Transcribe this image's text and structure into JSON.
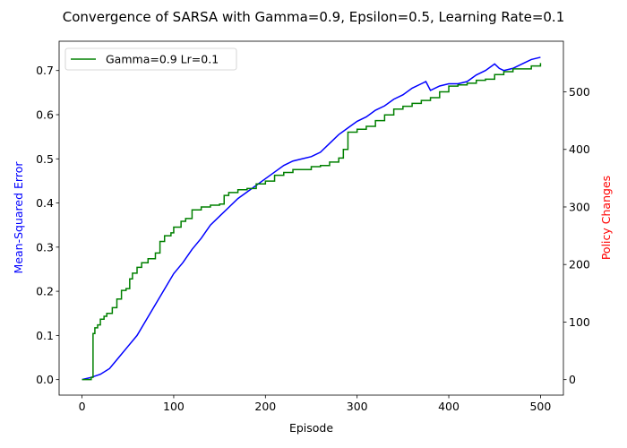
{
  "chart_data": {
    "type": "line",
    "title": "Convergence of SARSA with Gamma=0.9, Epsilon=0.5, Learning Rate=0.1",
    "xlabel": "Episode",
    "ylabel_left": "Mean-Squared Error",
    "ylabel_right": "Policy Changes",
    "xlim": [
      -25,
      525
    ],
    "ylim_left": [
      -0.0352,
      0.7664
    ],
    "ylim_right": [
      -27,
      588
    ],
    "x_ticks": [
      "0",
      "100",
      "200",
      "300",
      "400",
      "500"
    ],
    "y_left_ticks": [
      "0.0",
      "0.1",
      "0.2",
      "0.3",
      "0.4",
      "0.5",
      "0.6",
      "0.7"
    ],
    "y_right_ticks": [
      "0",
      "100",
      "200",
      "300",
      "400",
      "500"
    ],
    "grid": false,
    "legend_position": "top-left",
    "colors": {
      "mse": "#0000ff",
      "policy": "#008000",
      "ylabel_left": "#0000ff",
      "ylabel_right": "#ff0000"
    },
    "series": [
      {
        "id": "mse",
        "axis": "left",
        "x": [
          0,
          10,
          20,
          30,
          40,
          50,
          60,
          70,
          80,
          90,
          100,
          110,
          120,
          130,
          140,
          150,
          160,
          170,
          180,
          190,
          200,
          210,
          220,
          230,
          240,
          250,
          260,
          270,
          280,
          290,
          300,
          310,
          320,
          330,
          340,
          350,
          360,
          370,
          375,
          380,
          390,
          400,
          410,
          420,
          430,
          440,
          450,
          455,
          460,
          470,
          480,
          490,
          500
        ],
        "values": [
          0.0,
          0.005,
          0.012,
          0.025,
          0.05,
          0.075,
          0.1,
          0.135,
          0.17,
          0.205,
          0.24,
          0.265,
          0.295,
          0.32,
          0.35,
          0.37,
          0.39,
          0.41,
          0.425,
          0.44,
          0.455,
          0.47,
          0.485,
          0.495,
          0.5,
          0.505,
          0.515,
          0.535,
          0.555,
          0.57,
          0.585,
          0.595,
          0.61,
          0.62,
          0.635,
          0.645,
          0.66,
          0.67,
          0.675,
          0.655,
          0.665,
          0.67,
          0.67,
          0.675,
          0.69,
          0.7,
          0.715,
          0.705,
          0.7,
          0.705,
          0.715,
          0.725,
          0.73
        ]
      },
      {
        "id": "policy",
        "axis": "right",
        "name": "Gamma=0.9 Lr=0.1",
        "x": [
          0,
          10,
          11,
          12,
          14,
          17,
          20,
          24,
          27,
          33,
          38,
          43,
          48,
          52,
          55,
          60,
          65,
          72,
          80,
          85,
          90,
          97,
          100,
          108,
          113,
          120,
          130,
          140,
          150,
          155,
          160,
          170,
          180,
          190,
          200,
          210,
          220,
          230,
          250,
          260,
          270,
          280,
          285,
          290,
          300,
          310,
          320,
          330,
          340,
          350,
          360,
          370,
          380,
          390,
          400,
          410,
          420,
          430,
          440,
          450,
          460,
          470,
          480,
          490,
          500
        ],
        "values": [
          0,
          4,
          4,
          80,
          90,
          95,
          105,
          110,
          115,
          125,
          140,
          155,
          158,
          175,
          185,
          195,
          203,
          210,
          220,
          240,
          250,
          255,
          265,
          275,
          280,
          295,
          300,
          303,
          305,
          320,
          325,
          330,
          332,
          340,
          345,
          355,
          360,
          365,
          370,
          372,
          378,
          385,
          400,
          430,
          435,
          440,
          450,
          460,
          470,
          475,
          480,
          485,
          490,
          500,
          510,
          512,
          515,
          520,
          522,
          530,
          535,
          540,
          540,
          545,
          550
        ]
      }
    ]
  }
}
